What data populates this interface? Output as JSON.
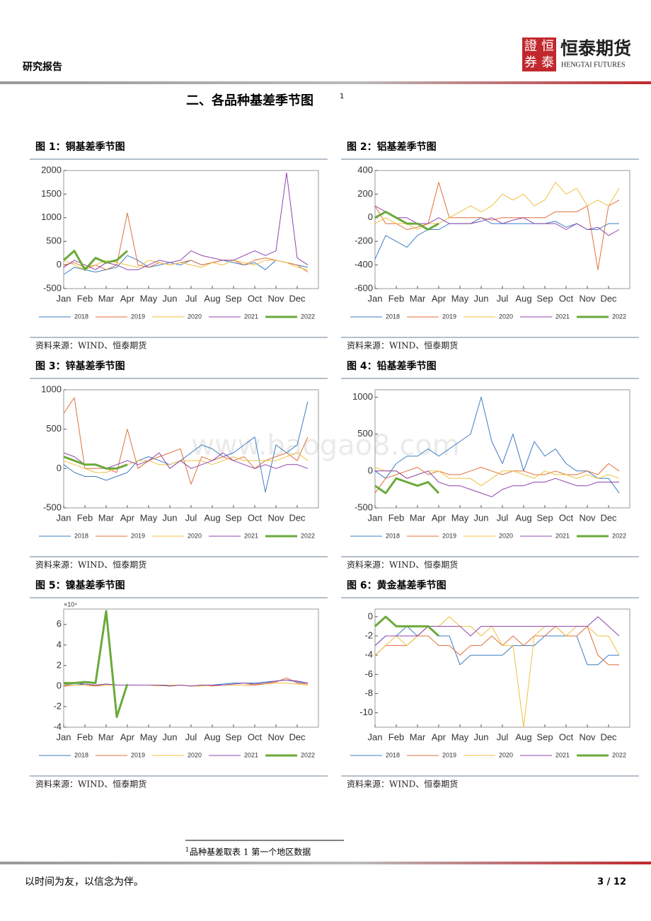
{
  "header": {
    "label": "研究报告",
    "logo_seal": [
      "證",
      "恒",
      "券",
      "泰"
    ],
    "logo_cn": "恒泰期货",
    "logo_en": "HENGTAI FUTURES"
  },
  "section": {
    "title": "二、各品种基差季节图",
    "note_ref": "1"
  },
  "watermark": "www.baogao8.com",
  "chart_data": [
    {
      "type": "line",
      "title": "图 1：铜基差季节图",
      "source": "资料来源：WIND、恒泰期货",
      "categories": [
        "Jan",
        null,
        "Feb",
        null,
        "Mar",
        null,
        "Apr",
        null,
        "May",
        null,
        "Jun",
        null,
        "Jul",
        null,
        "Aug",
        null,
        "Sep",
        null,
        "Oct",
        null,
        "Nov",
        null,
        "Dec",
        null
      ],
      "ylim": [
        -500,
        2000
      ],
      "yticks": [
        -500,
        0,
        500,
        1000,
        1500,
        2000
      ],
      "series": [
        {
          "name": "2018",
          "color": "#3b7dc4",
          "values": [
            -200,
            -50,
            -100,
            -150,
            -100,
            -50,
            200,
            100,
            -50,
            0,
            50,
            0,
            100,
            0,
            50,
            100,
            50,
            0,
            50,
            -100,
            100,
            50,
            0,
            -50
          ]
        },
        {
          "name": "2019",
          "color": "#e0703a",
          "values": [
            0,
            50,
            -50,
            0,
            -100,
            0,
            1100,
            0,
            -50,
            50,
            0,
            50,
            100,
            0,
            50,
            100,
            100,
            0,
            100,
            150,
            100,
            50,
            0,
            -150
          ]
        },
        {
          "name": "2020",
          "color": "#f0c040",
          "values": [
            100,
            0,
            -100,
            0,
            100,
            50,
            0,
            -50,
            100,
            50,
            0,
            50,
            0,
            -50,
            50,
            0,
            100,
            50,
            0,
            100,
            100,
            50,
            -50,
            -100
          ]
        },
        {
          "name": "2021",
          "color": "#8e44ad",
          "values": [
            -50,
            100,
            0,
            -100,
            50,
            0,
            -100,
            -100,
            0,
            100,
            50,
            100,
            300,
            200,
            150,
            100,
            100,
            200,
            300,
            200,
            300,
            1950,
            150,
            0
          ]
        },
        {
          "name": "2022",
          "color": "#6aaa3a",
          "values": [
            100,
            300,
            -100,
            150,
            50,
            100,
            300,
            null,
            null,
            null,
            null,
            null,
            null,
            null,
            null,
            null,
            null,
            null,
            null,
            null,
            null,
            null,
            null,
            null
          ]
        }
      ]
    },
    {
      "type": "line",
      "title": "图 2：铝基差季节图",
      "source": "资料来源：WIND、恒泰期货",
      "categories": [
        "Jan",
        null,
        "Feb",
        null,
        "Mar",
        null,
        "Apr",
        null,
        "May",
        null,
        "Jun",
        null,
        "Jul",
        null,
        "Aug",
        null,
        "Sep",
        null,
        "Oct",
        null,
        "Nov",
        null,
        "Dec",
        null
      ],
      "ylim": [
        -600,
        400
      ],
      "yticks": [
        -600,
        -400,
        -200,
        0,
        200,
        400
      ],
      "series": [
        {
          "name": "2018",
          "color": "#3b7dc4",
          "values": [
            -350,
            -150,
            -200,
            -250,
            -150,
            -100,
            -100,
            -50,
            -50,
            -50,
            0,
            -50,
            -50,
            -50,
            -50,
            -50,
            -50,
            -30,
            -80,
            -50,
            -100,
            -100,
            -50,
            -50
          ]
        },
        {
          "name": "2019",
          "color": "#e0703a",
          "values": [
            100,
            -50,
            -50,
            -100,
            -80,
            -50,
            300,
            0,
            0,
            0,
            0,
            -20,
            0,
            0,
            0,
            0,
            0,
            50,
            50,
            50,
            100,
            -440,
            100,
            150
          ]
        },
        {
          "name": "2020",
          "color": "#f0c040",
          "values": [
            -50,
            0,
            -50,
            -50,
            -100,
            -50,
            -50,
            0,
            50,
            100,
            50,
            100,
            200,
            150,
            200,
            100,
            150,
            300,
            200,
            250,
            100,
            150,
            100,
            250
          ]
        },
        {
          "name": "2021",
          "color": "#8e44ad",
          "values": [
            100,
            50,
            0,
            0,
            -50,
            -50,
            0,
            -50,
            -50,
            -50,
            -30,
            0,
            -50,
            -20,
            0,
            -50,
            -50,
            -50,
            -100,
            -50,
            -100,
            -80,
            -150,
            -100
          ]
        },
        {
          "name": "2022",
          "color": "#6aaa3a",
          "values": [
            0,
            50,
            0,
            -50,
            -50,
            -100,
            -50,
            null,
            null,
            null,
            null,
            null,
            null,
            null,
            null,
            null,
            null,
            null,
            null,
            null,
            null,
            null,
            null,
            null
          ]
        }
      ]
    },
    {
      "type": "line",
      "title": "图 3：锌基差季节图",
      "source": "资料来源：WIND、恒泰期货",
      "categories": [
        "Jan",
        null,
        "Feb",
        null,
        "Mar",
        null,
        "Apr",
        null,
        "May",
        null,
        "Jun",
        null,
        "Jul",
        null,
        "Aug",
        null,
        "Sep",
        null,
        "Oct",
        null,
        "Nov",
        null,
        "Dec",
        null
      ],
      "ylim": [
        -500,
        1000
      ],
      "yticks": [
        -500,
        0,
        500,
        1000
      ],
      "series": [
        {
          "name": "2018",
          "color": "#3b7dc4",
          "values": [
            50,
            -50,
            -100,
            -100,
            -150,
            -100,
            -50,
            100,
            150,
            100,
            50,
            100,
            200,
            300,
            250,
            150,
            200,
            300,
            400,
            -300,
            300,
            200,
            300,
            850
          ]
        },
        {
          "name": "2019",
          "color": "#e0703a",
          "values": [
            700,
            900,
            0,
            0,
            0,
            -50,
            500,
            0,
            100,
            150,
            200,
            250,
            -200,
            150,
            100,
            150,
            100,
            150,
            0,
            100,
            150,
            200,
            100,
            400
          ]
        },
        {
          "name": "2020",
          "color": "#f0c040",
          "values": [
            100,
            50,
            0,
            -50,
            -50,
            0,
            50,
            100,
            100,
            50,
            50,
            100,
            100,
            100,
            50,
            100,
            150,
            100,
            100,
            100,
            100,
            150,
            200,
            100
          ]
        },
        {
          "name": "2021",
          "color": "#8e44ad",
          "values": [
            200,
            150,
            50,
            50,
            0,
            50,
            100,
            50,
            100,
            200,
            0,
            100,
            0,
            50,
            100,
            200,
            100,
            50,
            0,
            50,
            0,
            50,
            50,
            0
          ]
        },
        {
          "name": "2022",
          "color": "#6aaa3a",
          "values": [
            150,
            100,
            50,
            50,
            0,
            0,
            50,
            null,
            null,
            null,
            null,
            null,
            null,
            null,
            null,
            null,
            null,
            null,
            null,
            null,
            null,
            null,
            null,
            null
          ]
        }
      ]
    },
    {
      "type": "line",
      "title": "图 4：铅基差季节图",
      "source": "资料来源：WIND、恒泰期货",
      "categories": [
        "Jan",
        null,
        "Feb",
        null,
        "Mar",
        null,
        "Apr",
        null,
        "May",
        null,
        "Jun",
        null,
        "Jul",
        null,
        "Aug",
        null,
        "Sep",
        null,
        "Oct",
        null,
        "Nov",
        null,
        "Dec",
        null
      ],
      "ylim": [
        -500,
        1100
      ],
      "yticks": [
        -500,
        0,
        500,
        1000
      ],
      "series": [
        {
          "name": "2018",
          "color": "#3b7dc4",
          "values": [
            0,
            -100,
            100,
            200,
            200,
            300,
            200,
            300,
            400,
            500,
            1000,
            400,
            100,
            500,
            0,
            400,
            200,
            300,
            100,
            0,
            0,
            -100,
            -100,
            -300
          ]
        },
        {
          "name": "2019",
          "color": "#e0703a",
          "values": [
            -300,
            -100,
            -50,
            0,
            50,
            -50,
            0,
            -50,
            -50,
            0,
            50,
            0,
            -50,
            0,
            0,
            -50,
            -50,
            0,
            -50,
            -50,
            0,
            -50,
            100,
            0
          ]
        },
        {
          "name": "2020",
          "color": "#f0c040",
          "values": [
            50,
            0,
            0,
            -100,
            -50,
            0,
            0,
            -100,
            -100,
            -100,
            -200,
            -100,
            0,
            0,
            -50,
            -100,
            0,
            -50,
            -50,
            -100,
            -50,
            -100,
            -50,
            -100
          ]
        },
        {
          "name": "2021",
          "color": "#8e44ad",
          "values": [
            0,
            0,
            0,
            -100,
            -50,
            0,
            -150,
            -200,
            -200,
            -250,
            -300,
            -350,
            -250,
            -200,
            -200,
            -150,
            -150,
            -100,
            -150,
            -200,
            -200,
            -150,
            -150,
            -150
          ]
        },
        {
          "name": "2022",
          "color": "#6aaa3a",
          "values": [
            -200,
            -300,
            -100,
            -150,
            -200,
            -150,
            -300,
            null,
            null,
            null,
            null,
            null,
            null,
            null,
            null,
            null,
            null,
            null,
            null,
            null,
            null,
            null,
            null,
            null
          ]
        }
      ]
    },
    {
      "type": "line",
      "title": "图 5：镍基差季节图",
      "source": "资料来源：WIND、恒泰期货",
      "y_scale_note": "×10⁴",
      "categories": [
        "Jan",
        null,
        "Feb",
        null,
        "Mar",
        null,
        "Apr",
        null,
        "May",
        null,
        "Jun",
        null,
        "Jul",
        null,
        "Aug",
        null,
        "Sep",
        null,
        "Oct",
        null,
        "Nov",
        null,
        "Dec",
        null
      ],
      "ylim": [
        -4,
        7.5
      ],
      "yticks": [
        -4,
        -2,
        0,
        2,
        4,
        6
      ],
      "series": [
        {
          "name": "2018",
          "color": "#3b7dc4",
          "values": [
            0.2,
            0.1,
            0.2,
            0.1,
            0.2,
            0.1,
            0.1,
            0.1,
            0.1,
            0.1,
            0.1,
            0.1,
            0,
            0.1,
            0.1,
            0.2,
            0.3,
            0.3,
            0.3,
            0.4,
            0.5,
            0.6,
            0.4,
            0.3
          ]
        },
        {
          "name": "2019",
          "color": "#e0703a",
          "values": [
            0,
            0.1,
            0.1,
            0,
            0.1,
            0.1,
            0.1,
            0.1,
            0.1,
            0.1,
            0,
            0.1,
            0,
            0.1,
            0,
            0.1,
            0.1,
            0.1,
            0.1,
            0.2,
            0.4,
            0.8,
            0.3,
            0.2
          ]
        },
        {
          "name": "2020",
          "color": "#f0c040",
          "values": [
            0.1,
            0.1,
            0.1,
            0.1,
            0.1,
            0.1,
            0.1,
            0.1,
            0.1,
            0,
            0.1,
            0.1,
            0,
            0,
            0.1,
            0.1,
            0.1,
            0.1,
            0.2,
            0.2,
            0.3,
            0.3,
            0.2,
            0.1
          ]
        },
        {
          "name": "2021",
          "color": "#8e44ad",
          "values": [
            0.2,
            0.3,
            0.2,
            0.1,
            0.2,
            0.1,
            0.1,
            0.1,
            0.1,
            0.1,
            0,
            0.1,
            0,
            0.1,
            0.1,
            0.1,
            0.2,
            0.3,
            0.2,
            0.3,
            0.5,
            0.6,
            0.5,
            0.3
          ]
        },
        {
          "name": "2022",
          "color": "#6aaa3a",
          "values": [
            0.3,
            0.3,
            0.4,
            0.3,
            7.3,
            -3,
            0.2,
            null,
            null,
            null,
            null,
            null,
            null,
            null,
            null,
            null,
            null,
            null,
            null,
            null,
            null,
            null,
            null,
            null
          ]
        }
      ]
    },
    {
      "type": "line",
      "title": "图 6：黄金基差季节图",
      "source": "资料来源：WIND、恒泰期货",
      "categories": [
        "Jan",
        null,
        "Feb",
        null,
        "Mar",
        null,
        "Apr",
        null,
        "May",
        null,
        "Jun",
        null,
        "Jul",
        null,
        "Aug",
        null,
        "Sep",
        null,
        "Oct",
        null,
        "Nov",
        null,
        "Dec",
        null
      ],
      "ylim": [
        -11.5,
        0.8
      ],
      "yticks": [
        -10,
        -8,
        -6,
        -4,
        -2,
        0
      ],
      "series": [
        {
          "name": "2018",
          "color": "#3b7dc4",
          "values": [
            -3,
            -2,
            -2,
            -1,
            -2,
            -1,
            -2,
            -2,
            -5,
            -4,
            -4,
            -4,
            -4,
            -3,
            -3,
            -3,
            -2,
            -2,
            -2,
            -2,
            -5,
            -5,
            -4,
            -4
          ]
        },
        {
          "name": "2019",
          "color": "#e0703a",
          "values": [
            -4,
            -3,
            -3,
            -3,
            -2,
            -2,
            -3,
            -3,
            -4,
            -3,
            -3,
            -2,
            -3,
            -2,
            -3,
            -2,
            -2,
            -1,
            -2,
            -2,
            -1,
            -4,
            -5,
            -5
          ]
        },
        {
          "name": "2020",
          "color": "#f0c040",
          "values": [
            -4,
            -3,
            -2,
            -3,
            -2,
            -1,
            -1,
            0,
            -1,
            -1,
            -2,
            -1,
            -3,
            -3,
            -11.5,
            -2,
            -1,
            -1,
            -2,
            -1,
            -1,
            -2,
            -2,
            -4
          ]
        },
        {
          "name": "2021",
          "color": "#8e44ad",
          "values": [
            -3,
            -2,
            -2,
            -2,
            -2,
            -1,
            -1,
            -1,
            -1,
            -2,
            -1,
            -1,
            -1,
            -1,
            -1,
            -1,
            -1,
            -1,
            -1,
            -1,
            -1,
            0,
            -1,
            -2
          ]
        },
        {
          "name": "2022",
          "color": "#6aaa3a",
          "values": [
            -1,
            0,
            -1,
            -1,
            -1,
            -1,
            -2,
            null,
            null,
            null,
            null,
            null,
            null,
            null,
            null,
            null,
            null,
            null,
            null,
            null,
            null,
            null,
            null,
            null
          ]
        }
      ]
    }
  ],
  "footnote": {
    "ref": "1",
    "text": "品种基差取表 1 第一个地区数据"
  },
  "footer": {
    "motto": "以时间为友，以信念为伴。",
    "page": "3 / 12"
  }
}
